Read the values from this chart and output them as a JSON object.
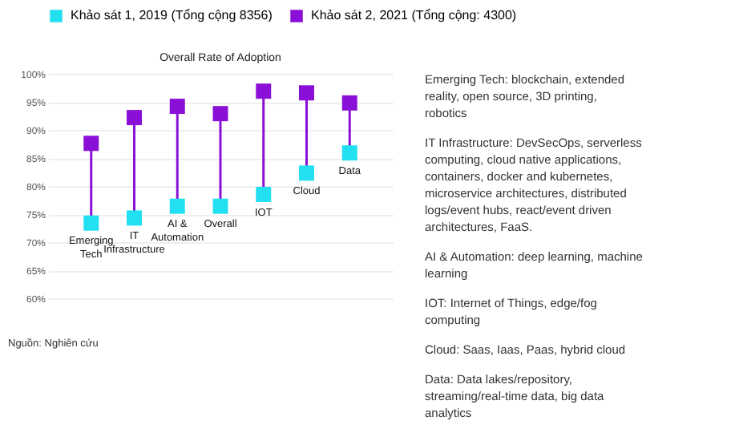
{
  "chart_data": {
    "type": "scatter",
    "title": "Overall Rate of Adoption",
    "categories": [
      "Emerging Tech",
      "IT Infrastructure",
      "AI & Automation",
      "Overall",
      "IOT",
      "Cloud",
      "Data"
    ],
    "series": [
      {
        "name": "Khảo sát 1, 2019 (Tổng cộng 8356)",
        "color": "#22e0f0",
        "values": [
          73.4,
          74.3,
          76.4,
          76.4,
          78.5,
          82.3,
          85.9
        ]
      },
      {
        "name": "Khảo sát 2, 2021 (Tổng cộng: 4300)",
        "color": "#8a10d8",
        "values": [
          87.6,
          92.2,
          94.2,
          92.9,
          96.9,
          96.6,
          94.8
        ]
      }
    ],
    "ylim": [
      60,
      100
    ],
    "yticks": [
      {
        "value": 60,
        "label": "60%"
      },
      {
        "value": 65,
        "label": "65%"
      },
      {
        "value": 70,
        "label": "70%"
      },
      {
        "value": 75,
        "label": "75%"
      },
      {
        "value": 80,
        "label": "80%"
      },
      {
        "value": 85,
        "label": "85%"
      },
      {
        "value": 90,
        "label": "90%"
      },
      {
        "value": 95,
        "label": "95%"
      },
      {
        "value": 100,
        "label": "100%"
      }
    ],
    "grid": "y",
    "legend": "top",
    "marker": "square",
    "tick_labels": "y",
    "annotations": [
      "Nguồn: Nghiên cứu",
      "Emerging Tech: blockchain, extended reality, open source, 3D printing, robotics",
      "IT Infrastructure: DevSecOps, serverless computing, cloud native applications, containers, docker and kubernetes, microservice architectures, distributed logs/event hubs, react/event driven architectures, FaaS.",
      "AI & Automation: deep learning, machine learning",
      "IOT: Internet of Things, edge/fog computing",
      "Cloud: Saas, Iaas, Paas, hybrid cloud",
      "Data: Data lakes/repository, streaming/real-time data, big data analytics"
    ]
  }
}
